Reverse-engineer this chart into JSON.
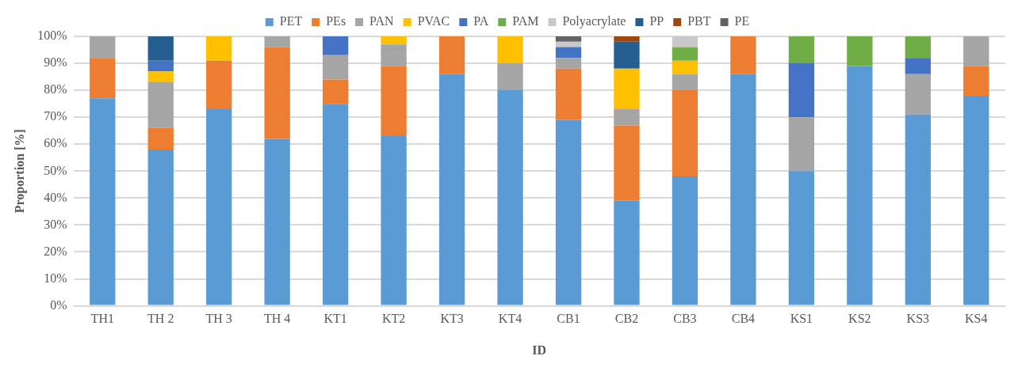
{
  "chart_data": {
    "type": "bar",
    "stacked": true,
    "xlabel": "ID",
    "ylabel": "Proportion [%]",
    "legend": "top",
    "grid": "y",
    "categories": [
      "TH1",
      "TH 2",
      "TH 3",
      "TH 4",
      "KT1",
      "KT2",
      "KT3",
      "KT4",
      "CB1",
      "CB2",
      "CB3",
      "CB4",
      "KS1",
      "KS2",
      "KS3",
      "KS4"
    ],
    "ylim": [
      0,
      100
    ],
    "yticks": [
      {
        "value": 0,
        "label": "0%"
      },
      {
        "value": 10,
        "label": "10%"
      },
      {
        "value": 20,
        "label": "20%"
      },
      {
        "value": 30,
        "label": "30%"
      },
      {
        "value": 40,
        "label": "40%"
      },
      {
        "value": 50,
        "label": "50%"
      },
      {
        "value": 60,
        "label": "60%"
      },
      {
        "value": 70,
        "label": "70%"
      },
      {
        "value": 80,
        "label": "80%"
      },
      {
        "value": 90,
        "label": "90%"
      },
      {
        "value": 100,
        "label": "100%"
      }
    ],
    "series": [
      {
        "name": "PET",
        "color": "#5b9bd5",
        "values": [
          77,
          58,
          73,
          62,
          75,
          63,
          86,
          80,
          69,
          39,
          48,
          86,
          50,
          89,
          71,
          78
        ]
      },
      {
        "name": "PEs",
        "color": "#ed7d31",
        "values": [
          15,
          8,
          18,
          34,
          9,
          26,
          14,
          0,
          19,
          28,
          32,
          14,
          0,
          0,
          0,
          11
        ]
      },
      {
        "name": "PAN",
        "color": "#a5a5a5",
        "values": [
          8,
          17,
          0,
          4,
          9,
          8,
          0,
          10,
          4,
          6,
          6,
          0,
          20,
          0,
          15,
          11
        ]
      },
      {
        "name": "PVAC",
        "color": "#ffc000",
        "values": [
          0,
          4,
          9,
          0,
          0,
          3,
          0,
          10,
          0,
          15,
          5,
          0,
          0,
          0,
          0,
          0
        ]
      },
      {
        "name": "PA",
        "color": "#4472c4",
        "values": [
          0,
          4,
          0,
          0,
          7,
          0,
          0,
          0,
          4,
          0,
          0,
          0,
          20,
          0,
          6,
          0
        ]
      },
      {
        "name": "PAM",
        "color": "#70ad47",
        "values": [
          0,
          0,
          0,
          0,
          0,
          0,
          0,
          0,
          0,
          0,
          5,
          0,
          10,
          11,
          8,
          0
        ]
      },
      {
        "name": "Polyacrylate",
        "color": "#c9c9c9",
        "values": [
          0,
          0,
          0,
          0,
          0,
          0,
          0,
          0,
          2,
          0,
          4,
          0,
          0,
          0,
          0,
          0
        ]
      },
      {
        "name": "PP",
        "color": "#255e91",
        "values": [
          0,
          9,
          0,
          0,
          0,
          0,
          0,
          0,
          0,
          10,
          0,
          0,
          0,
          0,
          0,
          0
        ]
      },
      {
        "name": "PBT",
        "color": "#9e480e",
        "values": [
          0,
          0,
          0,
          0,
          0,
          0,
          0,
          0,
          0,
          2,
          0,
          0,
          0,
          0,
          0,
          0
        ]
      },
      {
        "name": "PE",
        "color": "#636363",
        "values": [
          0,
          0,
          0,
          0,
          0,
          0,
          0,
          0,
          2,
          0,
          0,
          0,
          0,
          0,
          0,
          0
        ]
      }
    ]
  }
}
